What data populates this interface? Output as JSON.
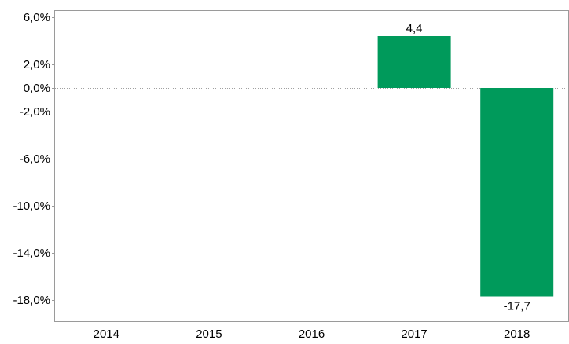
{
  "chart_data": {
    "type": "bar",
    "categories": [
      "2014",
      "2015",
      "2016",
      "2017",
      "2018"
    ],
    "values": [
      null,
      null,
      null,
      4.4,
      -17.7
    ],
    "data_labels": [
      "",
      "",
      "",
      "4,4",
      "-17,7"
    ],
    "ylim": [
      -20,
      6
    ],
    "yticks": [
      6,
      2,
      0,
      -2,
      -6,
      -10,
      -14,
      -18
    ],
    "ytick_labels": [
      "6,0%",
      "2,0%",
      "0,0%",
      "-2,0%",
      "-6,0%",
      "-10,0%",
      "-14,0%",
      "-18,0%"
    ],
    "bar_color": "#009a5b",
    "zero_line": "dotted",
    "grid": false,
    "legend": "none"
  }
}
